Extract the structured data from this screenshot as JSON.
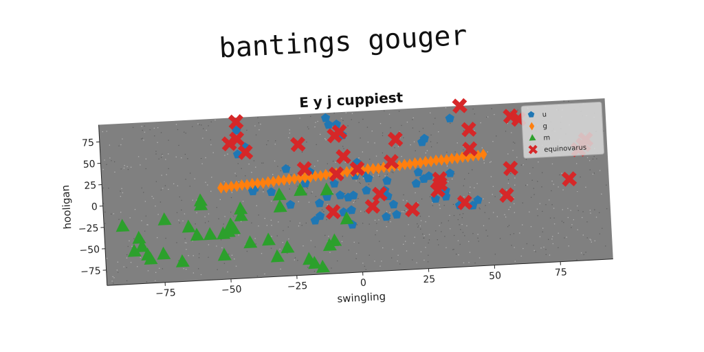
{
  "page_title": "bantings gouger",
  "chart_data": {
    "type": "scatter",
    "title": "E y j cuppiest",
    "xlabel": "swingling",
    "ylabel": "hooligan",
    "xlim": [
      -97,
      95
    ],
    "ylim": [
      -93,
      95
    ],
    "xticks": [
      -75,
      -50,
      -25,
      0,
      25,
      50,
      75
    ],
    "yticks": [
      -75,
      -50,
      -25,
      0,
      25,
      50,
      75
    ],
    "grid": false,
    "legend_position": "top-right",
    "background": "#808080",
    "series": [
      {
        "name": "u",
        "marker": "pentagon",
        "color": "#1f77b4",
        "points": [
          [
            -29,
            96
          ],
          [
            -11,
            89
          ],
          [
            -10,
            81
          ],
          [
            -7,
            81
          ],
          [
            -5,
            68
          ],
          [
            -45,
            80
          ],
          [
            -45,
            52
          ],
          [
            -42,
            60
          ],
          [
            -27,
            32
          ],
          [
            -18,
            27
          ],
          [
            -9,
            12
          ],
          [
            -1,
            20
          ],
          [
            0,
            35
          ],
          [
            0,
            29
          ],
          [
            3,
            22
          ],
          [
            4,
            16
          ],
          [
            11,
            12
          ],
          [
            3,
            2
          ],
          [
            10,
            1
          ],
          [
            -7,
            -2
          ],
          [
            -4,
            -5
          ],
          [
            -2,
            -3
          ],
          [
            11,
            -6
          ],
          [
            13,
            -16
          ],
          [
            14,
            -28
          ],
          [
            22,
            7
          ],
          [
            25,
            12
          ],
          [
            23,
            20
          ],
          [
            25,
            55
          ],
          [
            26,
            59
          ],
          [
            27,
            15
          ],
          [
            29,
            -12
          ],
          [
            30,
            3
          ],
          [
            33,
            -3
          ],
          [
            33,
            -10
          ],
          [
            35,
            17
          ],
          [
            38,
            -21
          ],
          [
            43,
            -22
          ],
          [
            45,
            -16
          ],
          [
            36,
            81
          ],
          [
            -40,
            8
          ],
          [
            -39,
            12
          ],
          [
            -26,
            -10
          ],
          [
            -15,
            -25
          ],
          [
            -3,
            -20
          ],
          [
            -17,
            -30
          ],
          [
            -3,
            -37
          ],
          [
            10,
            -30
          ],
          [
            -12,
            -3
          ],
          [
            -6,
            -22
          ],
          [
            -33,
            6
          ],
          [
            -20,
            14
          ],
          [
            -15,
            -10
          ]
        ]
      },
      {
        "name": "g",
        "marker": "diamond",
        "color": "#ff7f0e",
        "points": [
          [
            -52,
            14
          ],
          [
            -50,
            14
          ],
          [
            -48,
            15
          ],
          [
            -46,
            15
          ],
          [
            -44,
            16
          ],
          [
            -42,
            16
          ],
          [
            -40,
            17
          ],
          [
            -38,
            17
          ],
          [
            -36,
            17
          ],
          [
            -34,
            18
          ],
          [
            -32,
            18
          ],
          [
            -30,
            19
          ],
          [
            -28,
            19
          ],
          [
            -26,
            20
          ],
          [
            -24,
            20
          ],
          [
            -22,
            21
          ],
          [
            -20,
            21
          ],
          [
            -18,
            21
          ],
          [
            -16,
            22
          ],
          [
            -14,
            22
          ],
          [
            -12,
            23
          ],
          [
            -10,
            23
          ],
          [
            -8,
            24
          ],
          [
            -6,
            24
          ],
          [
            -4,
            25
          ],
          [
            -2,
            25
          ],
          [
            0,
            26
          ],
          [
            2,
            26
          ],
          [
            4,
            27
          ],
          [
            6,
            27
          ],
          [
            8,
            27
          ],
          [
            10,
            28
          ],
          [
            12,
            28
          ],
          [
            14,
            29
          ],
          [
            16,
            29
          ],
          [
            18,
            30
          ],
          [
            20,
            30
          ],
          [
            22,
            31
          ],
          [
            24,
            31
          ],
          [
            26,
            32
          ],
          [
            28,
            32
          ],
          [
            30,
            33
          ],
          [
            32,
            33
          ],
          [
            34,
            33
          ],
          [
            36,
            34
          ],
          [
            38,
            34
          ],
          [
            40,
            35
          ],
          [
            42,
            35
          ],
          [
            44,
            36
          ],
          [
            46,
            36
          ],
          [
            48,
            37
          ]
        ]
      },
      {
        "name": "m",
        "marker": "triangle",
        "color": "#2ca02c",
        "points": [
          [
            -90,
            -25
          ],
          [
            -84,
            -40
          ],
          [
            -83,
            -50
          ],
          [
            -86,
            -55
          ],
          [
            -81,
            -60
          ],
          [
            -80,
            -65
          ],
          [
            -75,
            -60
          ],
          [
            -74,
            -20
          ],
          [
            -68,
            -70
          ],
          [
            -65,
            -30
          ],
          [
            -62,
            -40
          ],
          [
            -60,
            0
          ],
          [
            -60,
            -5
          ],
          [
            -57,
            -40
          ],
          [
            -52,
            -40
          ],
          [
            -52,
            -65
          ],
          [
            -50,
            -38
          ],
          [
            -49,
            -30
          ],
          [
            -48,
            -35
          ],
          [
            -45,
            -12
          ],
          [
            -45,
            -20
          ],
          [
            -42,
            -52
          ],
          [
            -35,
            -50
          ],
          [
            -32,
            -70
          ],
          [
            -30,
            2
          ],
          [
            -28,
            -60
          ],
          [
            -22,
            6
          ],
          [
            -20,
            -75
          ],
          [
            -18,
            -80
          ],
          [
            -15,
            -85
          ],
          [
            -12,
            -60
          ],
          [
            -12,
            5
          ],
          [
            -5,
            -30
          ],
          [
            -30,
            -12
          ],
          [
            -10,
            -55
          ]
        ]
      },
      {
        "name": "equinovarus",
        "marker": "x",
        "color": "#d62728",
        "points": [
          [
            -45,
            90
          ],
          [
            -45,
            70
          ],
          [
            -48,
            65
          ],
          [
            -42,
            54
          ],
          [
            -32,
            97
          ],
          [
            -22,
            60
          ],
          [
            -20,
            31
          ],
          [
            -8,
            68
          ],
          [
            -6,
            72
          ],
          [
            -5,
            43
          ],
          [
            -8,
            23
          ],
          [
            -10,
            -21
          ],
          [
            0,
            28
          ],
          [
            5,
            -17
          ],
          [
            8,
            -3
          ],
          [
            13,
            34
          ],
          [
            15,
            60
          ],
          [
            20,
            -23
          ],
          [
            30,
            -2
          ],
          [
            31,
            5
          ],
          [
            31,
            11
          ],
          [
            40,
            95
          ],
          [
            40,
            -18
          ],
          [
            43,
            44
          ],
          [
            43,
            67
          ],
          [
            56,
            -12
          ],
          [
            58,
            19
          ],
          [
            59,
            80
          ],
          [
            62,
            76
          ],
          [
            80,
            3
          ],
          [
            84,
            37
          ],
          [
            86,
            42
          ],
          [
            87,
            48
          ]
        ]
      }
    ]
  }
}
